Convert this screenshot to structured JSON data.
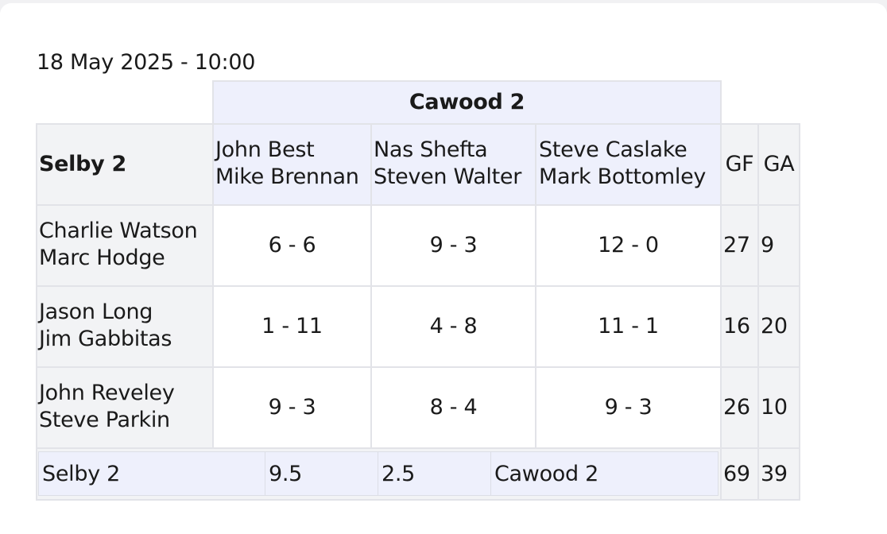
{
  "date": "18 May 2025 - 10:00",
  "away_team": "Cawood 2",
  "home_team": "Selby 2",
  "away_pairs": [
    {
      "p1": "John Best",
      "p2": "Mike Brennan"
    },
    {
      "p1": "Nas Shefta",
      "p2": "Steven Walter"
    },
    {
      "p1": "Steve Caslake",
      "p2": "Mark Bottomley"
    }
  ],
  "gf_label": "GF",
  "ga_label": "GA",
  "rows": [
    {
      "p1": "Charlie Watson",
      "p2": "Marc Hodge",
      "scores": [
        "6 - 6",
        "9 - 3",
        "12 - 0"
      ],
      "gf": "27",
      "ga": "9"
    },
    {
      "p1": "Jason Long",
      "p2": "Jim Gabbitas",
      "scores": [
        "1 - 11",
        "4 - 8",
        "11 - 1"
      ],
      "gf": "16",
      "ga": "20"
    },
    {
      "p1": "John Reveley",
      "p2": "Steve Parkin",
      "scores": [
        "9 - 3",
        "8 - 4",
        "9 - 3"
      ],
      "gf": "26",
      "ga": "10"
    }
  ],
  "totals": {
    "home_team": "Selby 2",
    "home_points": "9.5",
    "away_points": "2.5",
    "away_team": "Cawood 2",
    "gf": "69",
    "ga": "39"
  }
}
